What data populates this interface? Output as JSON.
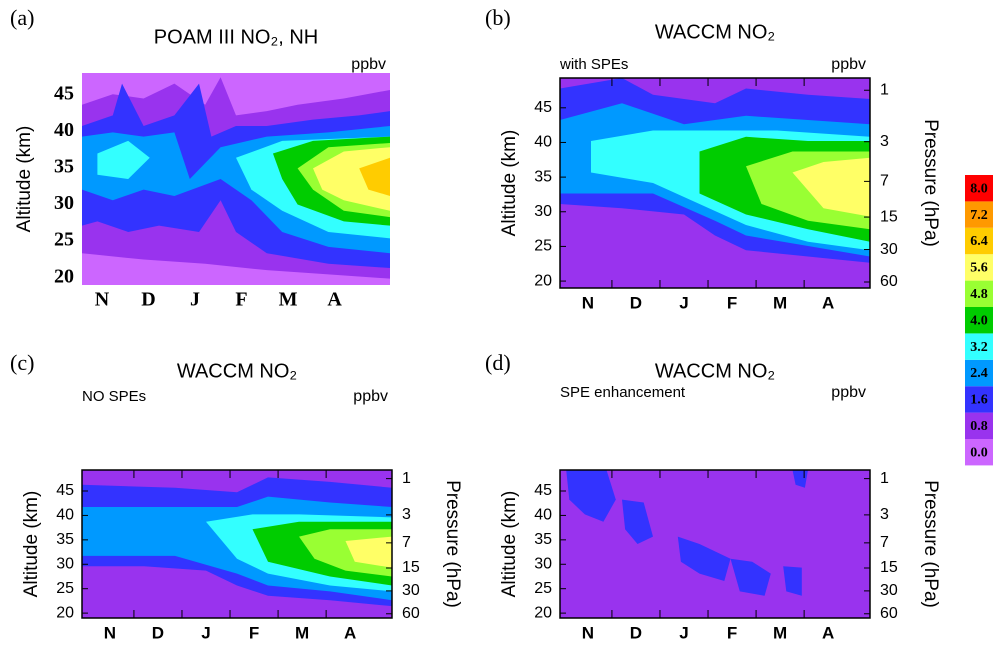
{
  "chart_data": [
    {
      "type": "contour",
      "panel": "(a)",
      "title": "POAM III NO₂, NH",
      "unit": "ppbv",
      "ylabel": "Altitude (km)",
      "categories": [
        "N",
        "D",
        "J",
        "F",
        "M",
        "A"
      ],
      "ylim": [
        19,
        48
      ],
      "yticks": [
        20,
        25,
        30,
        35,
        40,
        45
      ]
    },
    {
      "type": "contour",
      "panel": "(b)",
      "title": "WACCM NO₂",
      "annotation": "with SPEs",
      "unit": "ppbv",
      "ylabel": "Altitude (km)",
      "y2label": "Pressure (hPa)",
      "categories": [
        "N",
        "D",
        "J",
        "F",
        "M",
        "A"
      ],
      "ylim": [
        19,
        49.3
      ],
      "yticks": [
        20,
        25,
        30,
        35,
        40,
        45
      ],
      "y2lim": [
        68.2,
        0.77
      ],
      "y2ticks": [
        1,
        3,
        7,
        15,
        30,
        60
      ],
      "y2log": true
    },
    {
      "type": "contour",
      "panel": "(c)",
      "title": "WACCM NO₂",
      "annotation": "NO SPEs",
      "unit": "ppbv",
      "ylabel": "Altitude (km)",
      "y2label": "Pressure (hPa)",
      "categories": [
        "N",
        "D",
        "J",
        "F",
        "M",
        "A"
      ],
      "ylim": [
        19,
        49.3
      ],
      "yticks": [
        20,
        25,
        30,
        35,
        40,
        45
      ],
      "y2lim": [
        68.2,
        0.77
      ],
      "y2ticks": [
        1,
        3,
        7,
        15,
        30,
        60
      ],
      "y2log": true
    },
    {
      "type": "contour",
      "panel": "(d)",
      "title": "WACCM NO₂",
      "annotation": "SPE enhancement",
      "unit": "ppbv",
      "ylabel": "Altitude (km)",
      "y2label": "Pressure (hPa)",
      "categories": [
        "N",
        "D",
        "J",
        "F",
        "M",
        "A"
      ],
      "ylim": [
        19,
        49.3
      ],
      "yticks": [
        20,
        25,
        30,
        35,
        40,
        45
      ],
      "y2lim": [
        68.2,
        0.77
      ],
      "y2ticks": [
        1,
        3,
        7,
        15,
        30,
        60
      ],
      "y2log": true
    }
  ],
  "colorbar": {
    "levels": [
      {
        "value": 0,
        "label": "0.0"
      },
      {
        "value": 0.8,
        "label": "0.8"
      },
      {
        "value": 1.6,
        "label": "1.6"
      },
      {
        "value": 2.4,
        "label": "2.4"
      },
      {
        "value": 3.2,
        "label": "3.2"
      },
      {
        "value": 4,
        "label": "4.0"
      },
      {
        "value": 4.8,
        "label": "4.8"
      },
      {
        "value": 5.6,
        "label": "5.6"
      },
      {
        "value": 6.4,
        "label": "6.4"
      },
      {
        "value": 7.2,
        "label": "7.2"
      },
      {
        "value": 8,
        "label": "8.0"
      }
    ],
    "colors": [
      "#cc66ff",
      "#9933ee",
      "#3333ff",
      "#0099ff",
      "#33ffff",
      "#00cc00",
      "#99ff33",
      "#ffff66",
      "#ffcc00",
      "#ff9900",
      "#ff0000"
    ]
  }
}
